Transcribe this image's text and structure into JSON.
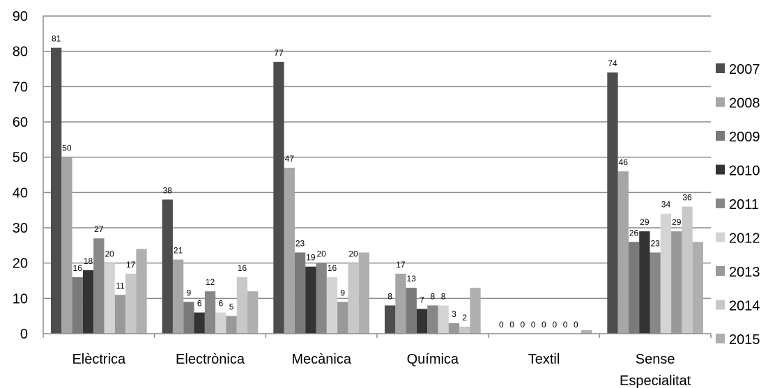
{
  "chart_data": {
    "type": "bar",
    "categories": [
      [
        "Elèctrica"
      ],
      [
        "Electrònica"
      ],
      [
        "Mecànica"
      ],
      [
        "Química"
      ],
      [
        "Textil"
      ],
      [
        "Sense",
        "Especialitat"
      ]
    ],
    "series": [
      {
        "name": "2007",
        "color": "#4d4d4d",
        "values": [
          81,
          38,
          77,
          8,
          0,
          74
        ],
        "labels": [
          "81",
          "38",
          "77",
          "8",
          "0",
          "74"
        ]
      },
      {
        "name": "2008",
        "color": "#a6a6a6",
        "values": [
          50,
          21,
          47,
          17,
          0,
          46
        ],
        "labels": [
          "50",
          "21",
          "47",
          "17",
          "0",
          "46"
        ]
      },
      {
        "name": "2009",
        "color": "#7a7a7a",
        "values": [
          16,
          9,
          23,
          13,
          0,
          26
        ],
        "labels": [
          "16",
          "9",
          "23",
          "13",
          "0",
          "26"
        ]
      },
      {
        "name": "2010",
        "color": "#333333",
        "values": [
          18,
          6,
          19,
          7,
          0,
          29
        ],
        "labels": [
          "18",
          "6",
          "19",
          "7",
          "0",
          "29"
        ]
      },
      {
        "name": "2011",
        "color": "#878787",
        "values": [
          27,
          12,
          20,
          8,
          0,
          23
        ],
        "labels": [
          "27",
          "12",
          "20",
          "8",
          "0",
          "23"
        ]
      },
      {
        "name": "2012",
        "color": "#d4d4d4",
        "values": [
          20,
          6,
          16,
          8,
          0,
          34
        ],
        "labels": [
          "20",
          "6",
          "16",
          "8",
          "0",
          "34"
        ]
      },
      {
        "name": "2013",
        "color": "#999999",
        "values": [
          11,
          5,
          9,
          3,
          0,
          29
        ],
        "labels": [
          "11",
          "5",
          "9",
          "3",
          "0",
          "29"
        ]
      },
      {
        "name": "2014",
        "color": "#c8c8c8",
        "values": [
          17,
          16,
          20,
          2,
          0,
          36
        ],
        "labels": [
          "17",
          "16",
          "20",
          "2",
          "0",
          "36"
        ]
      },
      {
        "name": "2015",
        "color": "#afafaf",
        "values": [
          24,
          12,
          23,
          13,
          1,
          26
        ],
        "labels": [
          "",
          "",
          "",
          "",
          "",
          ""
        ]
      }
    ],
    "yticks": [
      "0",
      "10",
      "20",
      "30",
      "40",
      "50",
      "60",
      "70",
      "80",
      "90"
    ],
    "ylim": [
      0,
      90
    ],
    "grid": true,
    "legend": "right",
    "title": "",
    "xlabel": "",
    "ylabel": ""
  }
}
